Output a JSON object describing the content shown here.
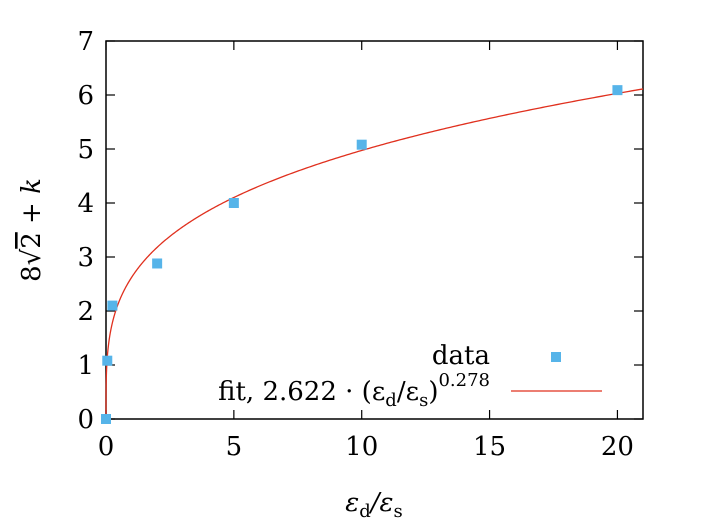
{
  "chart_data": {
    "type": "scatter",
    "title": "",
    "xlabel": {
      "pre": "ε",
      "sub1": "d",
      "mid": "/ε",
      "sub2": "s"
    },
    "ylabel": {
      "pre": "8",
      "radical": "√",
      "radicand": "2",
      "plus": " + ",
      "var": "k"
    },
    "xlim": [
      0,
      21
    ],
    "ylim": [
      0,
      7
    ],
    "xticks": [
      0,
      5,
      10,
      15,
      20
    ],
    "yticks": [
      0,
      1,
      2,
      3,
      4,
      5,
      6,
      7
    ],
    "grid": false,
    "legend_position": "bottom-right",
    "colors": {
      "data": "#56b4e9",
      "fit": "#e0301e",
      "axes": "#000000"
    },
    "series": [
      {
        "name": "data",
        "kind": "points",
        "x": [
          0,
          0.05,
          0.25,
          2,
          5,
          10,
          20
        ],
        "y": [
          0,
          1.08,
          2.1,
          2.88,
          4.0,
          5.08,
          6.09
        ]
      },
      {
        "kind": "function",
        "coefficient": 2.622,
        "exponent": 0.278
      }
    ],
    "legend": {
      "data_label": "data",
      "fit_prefix": "fit, 2.622 · (ε",
      "fit_sub1": "d",
      "fit_mid": "/ε",
      "fit_sub2": "s",
      "fit_close": ")",
      "fit_exponent": "0.278"
    }
  }
}
